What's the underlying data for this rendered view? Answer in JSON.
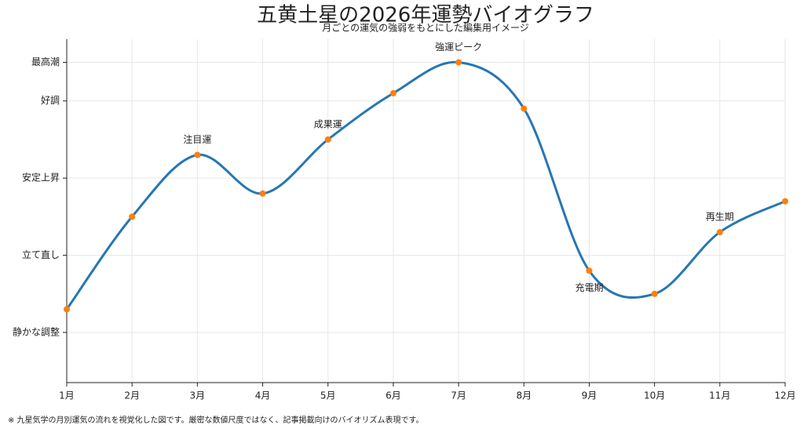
{
  "chart_data": {
    "type": "line",
    "title": "五黄土星の2026年運勢バイオグラフ",
    "subtitle": "月ごとの運気の強弱をもとにした編集用イメージ",
    "footnote": "※ 九星気学の月別運気の流れを視覚化した図です。厳密な数値尺度ではなく、記事掲載向けのバイオリズム表現です。",
    "categories": [
      "1月",
      "2月",
      "3月",
      "4月",
      "5月",
      "6月",
      "7月",
      "8月",
      "9月",
      "10月",
      "11月",
      "12月"
    ],
    "series": [
      {
        "name": "運勢",
        "color": "#2677b4",
        "marker_color": "#ff7f0e",
        "values": [
          26,
          50,
          66,
          56,
          70,
          82,
          90,
          78,
          36,
          30,
          46,
          54
        ],
        "point_labels": [
          null,
          null,
          "注目運",
          null,
          "成果運",
          null,
          "強運ピーク",
          null,
          "充電期",
          null,
          "再生期",
          null
        ]
      }
    ],
    "ylim": [
      7,
      96
    ],
    "yticks": [
      {
        "value": 20,
        "label": "静かな調整"
      },
      {
        "value": 40,
        "label": "立て直し"
      },
      {
        "value": 60,
        "label": "安定上昇"
      },
      {
        "value": 80,
        "label": "好調"
      },
      {
        "value": 90,
        "label": "最高潮"
      }
    ],
    "grid": true
  }
}
